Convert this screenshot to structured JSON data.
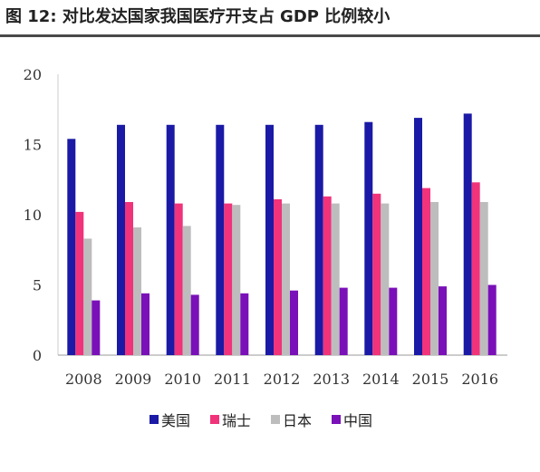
{
  "title": "图 12: 对比发达国家我国医疗开支占 GDP 比例较小",
  "chart_data": {
    "type": "bar",
    "title": "",
    "xlabel": "",
    "ylabel": "",
    "categories": [
      "2008",
      "2009",
      "2010",
      "2011",
      "2012",
      "2013",
      "2014",
      "2015",
      "2016"
    ],
    "series": [
      {
        "name": "美国",
        "color": "#1a1aa6",
        "values": [
          15.4,
          16.4,
          16.4,
          16.4,
          16.4,
          16.4,
          16.6,
          16.9,
          17.2
        ]
      },
      {
        "name": "瑞士",
        "color": "#f0337a",
        "values": [
          10.2,
          10.9,
          10.8,
          10.8,
          11.1,
          11.3,
          11.5,
          11.9,
          12.3
        ]
      },
      {
        "name": "日本",
        "color": "#bdbdbd",
        "values": [
          8.3,
          9.1,
          9.2,
          10.7,
          10.8,
          10.8,
          10.8,
          10.9,
          10.9
        ]
      },
      {
        "name": "中国",
        "color": "#7a10b8",
        "values": [
          3.9,
          4.4,
          4.3,
          4.4,
          4.6,
          4.8,
          4.8,
          4.9,
          5.0
        ]
      }
    ],
    "y_ticks": [
      0,
      5,
      10,
      15,
      20
    ],
    "ylim": [
      0,
      20
    ],
    "grid": false,
    "legend_position": "bottom"
  }
}
